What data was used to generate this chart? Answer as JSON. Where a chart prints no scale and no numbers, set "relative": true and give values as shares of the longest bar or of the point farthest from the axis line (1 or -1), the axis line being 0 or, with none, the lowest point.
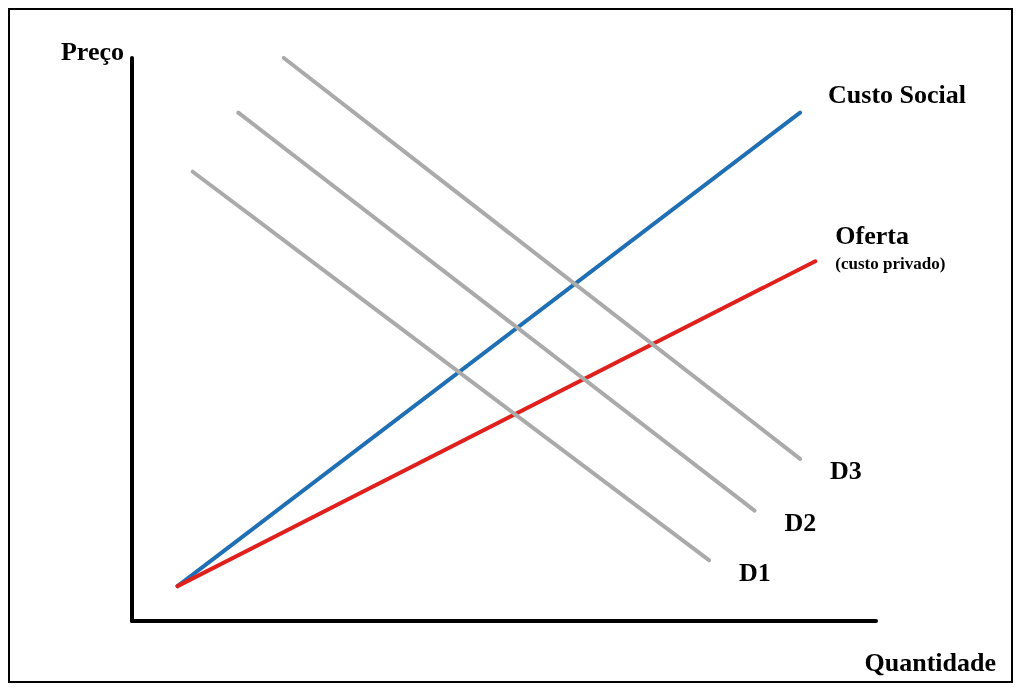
{
  "chart_data": {
    "type": "line",
    "relative": true,
    "xlabel": "Quantidade",
    "ylabel": "Preço",
    "legend": false,
    "grid": false,
    "marker": "none",
    "line_style": "solid",
    "categories": [
      null,
      null,
      null,
      null,
      null,
      null,
      null,
      null,
      null,
      null,
      null,
      null,
      null,
      null,
      null,
      null,
      null,
      null,
      null,
      null,
      null,
      null,
      null,
      null,
      null,
      null,
      null,
      null,
      null,
      null,
      null,
      null,
      null,
      null,
      null,
      null,
      null,
      null,
      null,
      null,
      null,
      null,
      null,
      null,
      null,
      null,
      null,
      null,
      null,
      null
    ],
    "series": [
      {
        "name": "Custo Social",
        "color": "#1f6fb4",
        "values": [
          null,
          null,
          null,
          0.062,
          null,
          null,
          null,
          null,
          null,
          null,
          null,
          null,
          null,
          null,
          null,
          null,
          null,
          null,
          null,
          null,
          null,
          null,
          null,
          null,
          null,
          null,
          null,
          null,
          null,
          null,
          null,
          null,
          null,
          null,
          null,
          null,
          null,
          null,
          null,
          null,
          null,
          null,
          null,
          null,
          0.903,
          null,
          null,
          null,
          null,
          null
        ]
      },
      {
        "name": "Oferta\n(custo privado)",
        "color": "#e0201c",
        "values": [
          null,
          null,
          null,
          0.062,
          null,
          null,
          null,
          null,
          null,
          null,
          null,
          null,
          null,
          null,
          null,
          null,
          null,
          null,
          null,
          null,
          null,
          null,
          null,
          null,
          null,
          null,
          null,
          null,
          null,
          null,
          null,
          null,
          null,
          null,
          null,
          null,
          null,
          null,
          null,
          null,
          null,
          null,
          null,
          null,
          null,
          0.639,
          null,
          null,
          null,
          null
        ]
      },
      {
        "name": "D1",
        "color": "#aaaaaa",
        "values": [
          null,
          null,
          null,
          null,
          0.798,
          null,
          null,
          null,
          null,
          null,
          null,
          null,
          null,
          null,
          null,
          null,
          null,
          null,
          null,
          null,
          null,
          null,
          null,
          null,
          null,
          null,
          null,
          null,
          null,
          null,
          null,
          null,
          null,
          null,
          null,
          null,
          null,
          null,
          0.108,
          null,
          null,
          null,
          null,
          null,
          null,
          null,
          null,
          null,
          null,
          null
        ]
      },
      {
        "name": "D2",
        "color": "#aaaaaa",
        "values": [
          null,
          null,
          null,
          null,
          null,
          null,
          null,
          0.903,
          null,
          null,
          null,
          null,
          null,
          null,
          null,
          null,
          null,
          null,
          null,
          null,
          null,
          null,
          null,
          null,
          null,
          null,
          null,
          null,
          null,
          null,
          null,
          null,
          null,
          null,
          null,
          null,
          null,
          null,
          null,
          null,
          null,
          0.196,
          null,
          null,
          null,
          null,
          null,
          null,
          null,
          null
        ]
      },
      {
        "name": "D3",
        "color": "#aaaaaa",
        "values": [
          null,
          null,
          null,
          null,
          null,
          null,
          null,
          null,
          null,
          null,
          1,
          null,
          null,
          null,
          null,
          null,
          null,
          null,
          null,
          null,
          null,
          null,
          null,
          null,
          null,
          null,
          null,
          null,
          null,
          null,
          null,
          null,
          null,
          null,
          null,
          null,
          null,
          null,
          null,
          null,
          null,
          null,
          null,
          null,
          0.288,
          null,
          null,
          null,
          null,
          null
        ]
      }
    ]
  }
}
